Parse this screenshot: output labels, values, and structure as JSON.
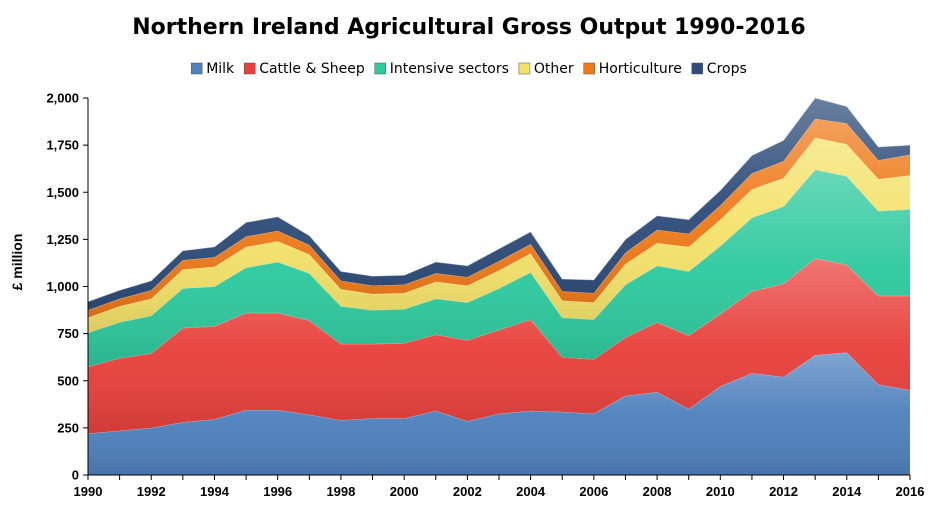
{
  "chart_data": {
    "type": "area",
    "stacked": true,
    "title": "Northern Ireland Agricultural Gross Output 1990-2016",
    "xlabel": "",
    "ylabel": "£ million",
    "ylim": [
      0,
      2000
    ],
    "yticks": [
      0,
      250,
      500,
      750,
      1000,
      1250,
      1500,
      1750,
      2000
    ],
    "ytick_labels": [
      "0",
      "250",
      "500",
      "750",
      "1,000",
      "1,250",
      "1,500",
      "1,750",
      "2,000"
    ],
    "xtick_labels": [
      "1990",
      "1992",
      "1994",
      "1996",
      "1998",
      "2000",
      "2002",
      "2004",
      "2006",
      "2008",
      "2010",
      "2012",
      "2014",
      "2016"
    ],
    "legend_position": "top",
    "x": [
      1990,
      1991,
      1992,
      1993,
      1994,
      1995,
      1996,
      1997,
      1998,
      1999,
      2000,
      2001,
      2002,
      2003,
      2004,
      2005,
      2006,
      2007,
      2008,
      2009,
      2010,
      2011,
      2012,
      2013,
      2014,
      2015,
      2016
    ],
    "series": [
      {
        "name": "Milk",
        "color": "#4f81bd",
        "values": [
          220,
          235,
          250,
          280,
          295,
          345,
          345,
          320,
          290,
          300,
          300,
          340,
          285,
          325,
          340,
          335,
          325,
          420,
          440,
          350,
          470,
          540,
          520,
          635,
          650,
          480,
          450
        ]
      },
      {
        "name": "Cattle & Sheep",
        "color": "#e8413c",
        "values": [
          355,
          385,
          395,
          500,
          495,
          515,
          515,
          500,
          405,
          395,
          400,
          405,
          430,
          445,
          485,
          290,
          290,
          310,
          370,
          390,
          385,
          435,
          495,
          515,
          465,
          470,
          500
        ]
      },
      {
        "name": "Intensive sectors",
        "color": "#2ec99e",
        "values": [
          180,
          190,
          200,
          210,
          210,
          240,
          270,
          250,
          200,
          180,
          180,
          190,
          200,
          220,
          250,
          210,
          210,
          280,
          300,
          340,
          360,
          390,
          410,
          470,
          470,
          450,
          460
        ]
      },
      {
        "name": "Other",
        "color": "#f4e26a",
        "values": [
          80,
          85,
          90,
          100,
          105,
          110,
          110,
          100,
          90,
          85,
          85,
          90,
          90,
          95,
          100,
          90,
          90,
          110,
          120,
          130,
          140,
          150,
          150,
          170,
          170,
          170,
          180
        ]
      },
      {
        "name": "Horticulture",
        "color": "#ee7a1a",
        "values": [
          40,
          40,
          45,
          50,
          50,
          55,
          55,
          50,
          45,
          45,
          45,
          45,
          45,
          50,
          50,
          50,
          50,
          60,
          70,
          70,
          75,
          85,
          90,
          100,
          110,
          100,
          110
        ]
      },
      {
        "name": "Crops",
        "color": "#2e4d7a",
        "values": [
          45,
          45,
          50,
          50,
          55,
          75,
          75,
          50,
          50,
          50,
          50,
          60,
          60,
          65,
          65,
          65,
          70,
          70,
          75,
          75,
          80,
          95,
          110,
          110,
          90,
          70,
          50
        ]
      }
    ]
  }
}
